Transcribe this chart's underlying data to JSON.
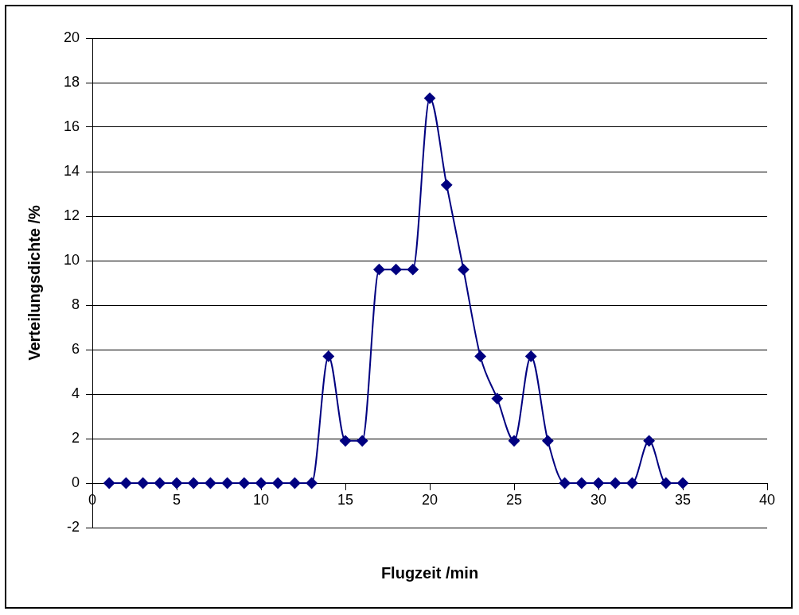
{
  "chart_data": {
    "type": "line",
    "xlabel": "Flugzeit /min",
    "ylabel": "Verteilungsdichte /%",
    "x": [
      1,
      2,
      3,
      4,
      5,
      6,
      7,
      8,
      9,
      10,
      11,
      12,
      13,
      14,
      15,
      16,
      17,
      18,
      19,
      20,
      21,
      22,
      23,
      24,
      25,
      26,
      27,
      28,
      29,
      30,
      31,
      32,
      33,
      34,
      35
    ],
    "series": [
      {
        "color": "#000080",
        "values": [
          0,
          0,
          0,
          0,
          0,
          0,
          0,
          0,
          0,
          0,
          0,
          0,
          0,
          5.7,
          1.9,
          1.9,
          9.6,
          9.6,
          9.6,
          17.3,
          13.4,
          9.6,
          5.7,
          3.8,
          1.9,
          5.7,
          1.9,
          0,
          0,
          0,
          0,
          0,
          1.9,
          0,
          0
        ]
      }
    ],
    "xlim": [
      0,
      40
    ],
    "xticks": [
      0,
      5,
      10,
      15,
      20,
      25,
      30,
      35,
      40
    ],
    "ylim": [
      -2,
      20
    ],
    "yticks": [
      -2,
      0,
      2,
      4,
      6,
      8,
      10,
      12,
      14,
      16,
      18,
      20
    ],
    "grid": "y",
    "legend": false,
    "marker": "diamond",
    "line_style": "solid"
  }
}
